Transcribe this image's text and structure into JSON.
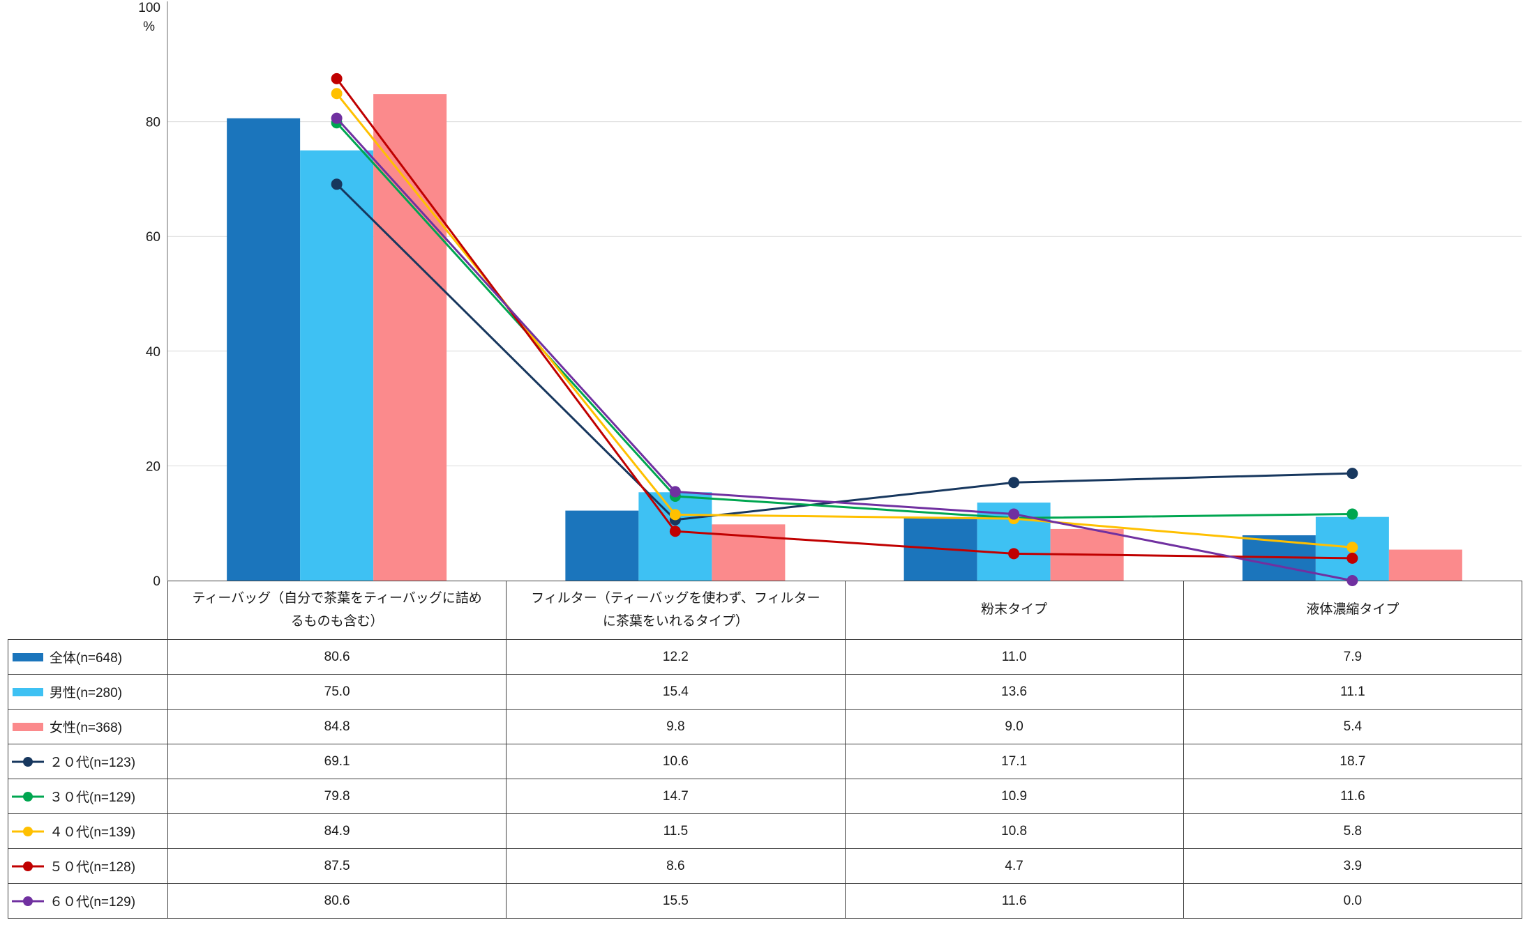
{
  "chart_data": {
    "type": "bar+line",
    "title": "",
    "ylabel_unit": "%",
    "ylim": [
      0,
      100
    ],
    "yticks": [
      0,
      20,
      40,
      60,
      80,
      100
    ],
    "grid": true,
    "legend_position": "table-left",
    "categories": [
      "ティーバッグ（自分で茶葉をティーバッグに詰めるものも含む）",
      "フィルター（ティーバッグを使わず、フィルターに茶葉をいれるタイプ）",
      "粉末タイプ",
      "液体濃縮タイプ"
    ],
    "series": [
      {
        "name": "全体(n=648)",
        "type": "bar",
        "color": "#1B75BC",
        "values": [
          80.6,
          12.2,
          11.0,
          7.9
        ]
      },
      {
        "name": "男性(n=280)",
        "type": "bar",
        "color": "#3EC1F3",
        "values": [
          75.0,
          15.4,
          13.6,
          11.1
        ]
      },
      {
        "name": "女性(n=368)",
        "type": "bar",
        "color": "#FB8A8C",
        "values": [
          84.8,
          9.8,
          9.0,
          5.4
        ]
      },
      {
        "name": "２０代(n=123)",
        "type": "line",
        "color": "#17375E",
        "values": [
          69.1,
          10.6,
          17.1,
          18.7
        ]
      },
      {
        "name": "３０代(n=129)",
        "type": "line",
        "color": "#00A650",
        "values": [
          79.8,
          14.7,
          10.9,
          11.6
        ]
      },
      {
        "name": "４０代(n=139)",
        "type": "line",
        "color": "#FFC000",
        "values": [
          84.9,
          11.5,
          10.8,
          5.8
        ]
      },
      {
        "name": "５０代(n=128)",
        "type": "line",
        "color": "#C00000",
        "values": [
          87.5,
          8.6,
          4.7,
          3.9
        ]
      },
      {
        "name": "６０代(n=129)",
        "type": "line",
        "color": "#7030A0",
        "values": [
          80.6,
          15.5,
          11.6,
          0.0
        ]
      }
    ],
    "value_decimals": 1
  }
}
